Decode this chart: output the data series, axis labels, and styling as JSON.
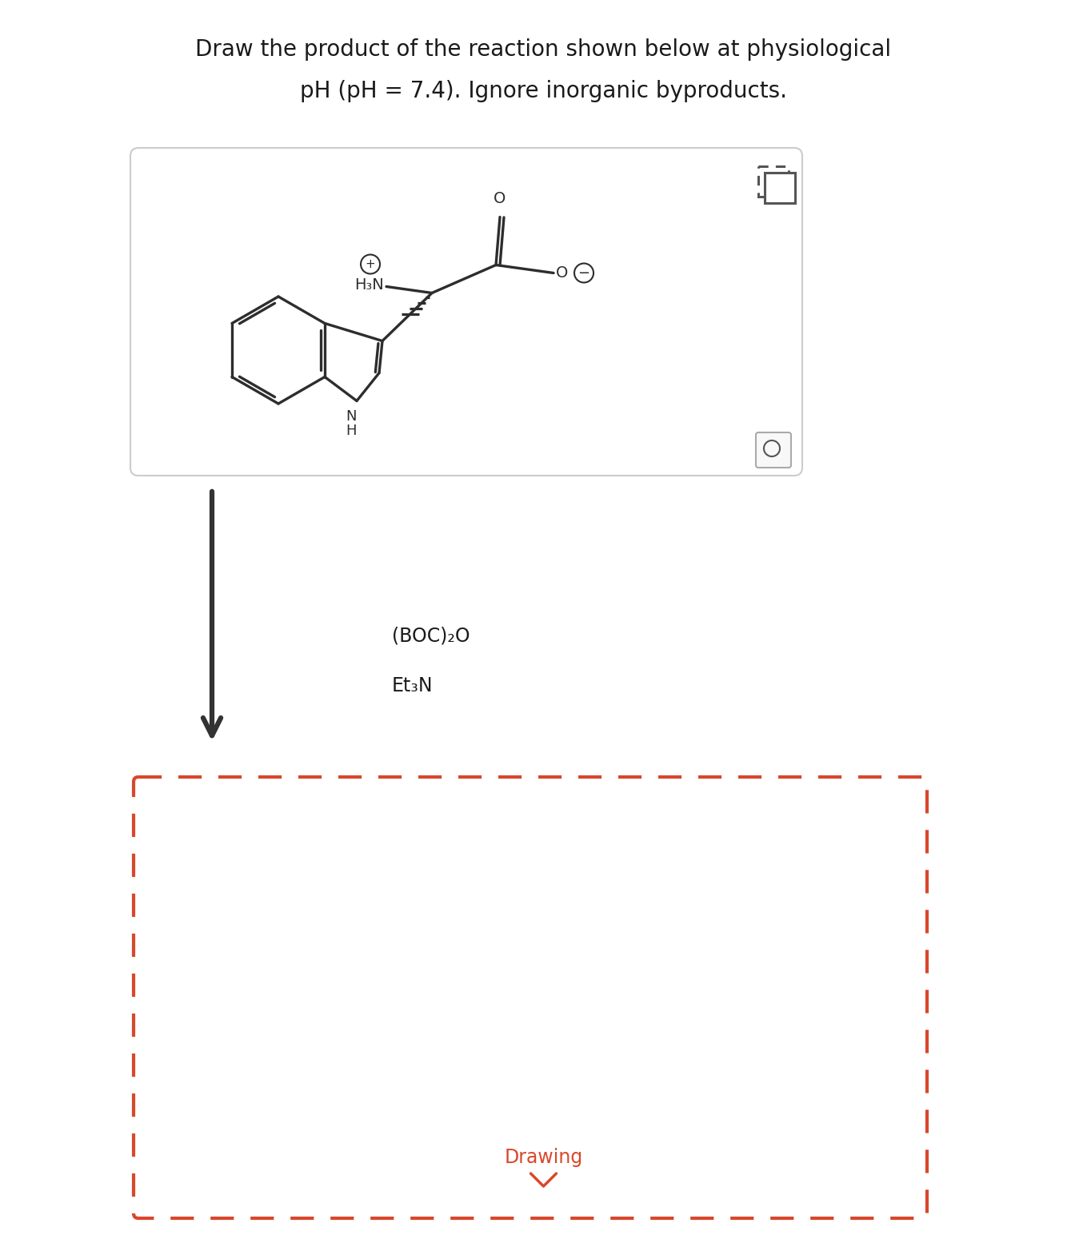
{
  "title_line1": "Draw the product of the reaction shown below at physiological",
  "title_line2": "pH (pH = 7.4). Ignore inorganic byproducts.",
  "title_fontsize": 20,
  "title_color": "#1a1a1a",
  "background_color": "#ffffff",
  "molecule_color": "#2d2d2d",
  "reagent1": "(BOC)₂O",
  "reagent2": "Et₃N",
  "reagent_fontsize": 17,
  "drawing_text": "Drawing",
  "drawing_color": "#d9472b",
  "drawing_fontsize": 17,
  "arrow_color": "#333333",
  "dashed_box_color": "#d9472b",
  "box_edge_color": "#cccccc",
  "icon_color": "#555555",
  "figw": 13.59,
  "figh": 15.6,
  "dpi": 100
}
